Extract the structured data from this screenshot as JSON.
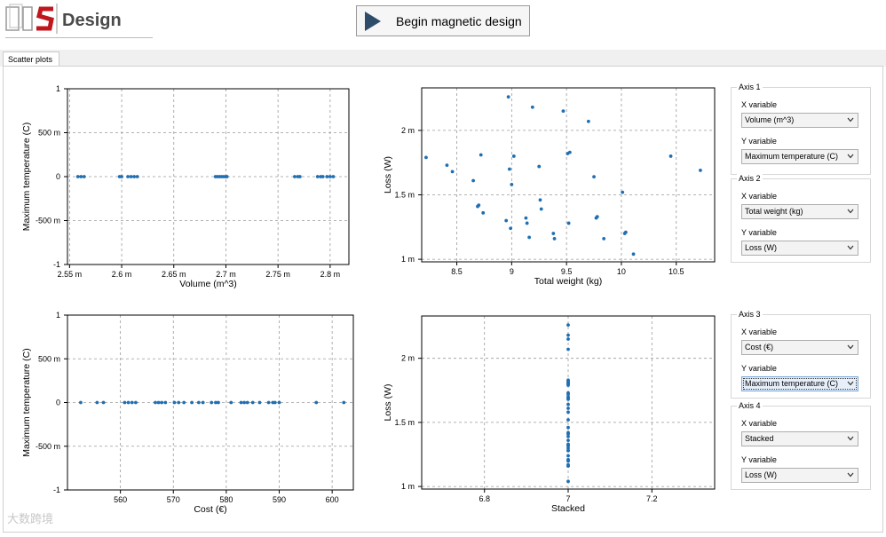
{
  "app": {
    "logo_text": "Design",
    "begin_button_label": "Begin magnetic design",
    "tab_label": "Scatter plots",
    "watermark": "大数跨境"
  },
  "colors": {
    "point": "#1f6fb2",
    "button_arrow": "#2e4d6b",
    "logo_red": "#c0161e"
  },
  "axes_panels": [
    {
      "title": "Axis 1",
      "x_label": "X variable",
      "x_value": "Volume (m^3)",
      "y_label": "Y variable",
      "y_value": "Maximum temperature (C)"
    },
    {
      "title": "Axis 2",
      "x_label": "X variable",
      "x_value": "Total weight (kg)",
      "y_label": "Y variable",
      "y_value": "Loss (W)"
    },
    {
      "title": "Axis 3",
      "x_label": "X variable",
      "x_value": "Cost (€)",
      "y_label": "Y variable",
      "y_value": "Maximum temperature (C)"
    },
    {
      "title": "Axis 4",
      "x_label": "X variable",
      "x_value": "Stacked",
      "y_label": "Y variable",
      "y_value": "Loss (W)"
    }
  ],
  "chart_data": [
    {
      "type": "scatter",
      "title": "",
      "xlabel": "Volume (m^3)",
      "ylabel": "Maximum temperature (C)",
      "xlim": [
        2.548,
        2.818
      ],
      "ylim": [
        -1,
        1
      ],
      "xticks": [
        2.55,
        2.6,
        2.65,
        2.7,
        2.75,
        2.8
      ],
      "xtick_labels": [
        "2.55 m",
        "2.6 m",
        "2.65 m",
        "2.7 m",
        "2.75 m",
        "2.8 m"
      ],
      "yticks": [
        -1,
        -0.5,
        0,
        0.5,
        1
      ],
      "ytick_labels": [
        "-1",
        "-500 m",
        "0",
        "500 m",
        "1"
      ],
      "grid": true,
      "x": [
        2.558,
        2.561,
        2.564,
        2.598,
        2.6,
        2.606,
        2.609,
        2.612,
        2.615,
        2.69,
        2.692,
        2.694,
        2.696,
        2.698,
        2.7,
        2.701,
        2.766,
        2.769,
        2.771,
        2.788,
        2.791,
        2.793,
        2.797,
        2.8,
        2.803
      ],
      "y": [
        0,
        0,
        0,
        0,
        0,
        0,
        0,
        0,
        0,
        0,
        0,
        0,
        0,
        0,
        0,
        0,
        0,
        0,
        0,
        0,
        0,
        0,
        0,
        0,
        0
      ]
    },
    {
      "type": "scatter",
      "title": "",
      "xlabel": "Total weight (kg)",
      "ylabel": "Loss (W)",
      "xlim": [
        8.18,
        10.85
      ],
      "ylim": [
        0.00098,
        0.00233
      ],
      "xticks": [
        8.5,
        9,
        9.5,
        10,
        10.5
      ],
      "xtick_labels": [
        "8.5",
        "9",
        "9.5",
        "10",
        "10.5"
      ],
      "yticks": [
        0.001,
        0.0015,
        0.002
      ],
      "ytick_labels": [
        "1 m",
        "1.5 m",
        "2 m"
      ],
      "grid": true,
      "x": [
        8.22,
        8.41,
        8.46,
        8.65,
        8.69,
        8.7,
        8.72,
        8.74,
        8.95,
        8.97,
        8.98,
        8.99,
        9.0,
        9.02,
        9.13,
        9.14,
        9.16,
        9.19,
        9.25,
        9.26,
        9.27,
        9.38,
        9.39,
        9.47,
        9.51,
        9.52,
        9.53,
        9.7,
        9.75,
        9.77,
        9.78,
        9.84,
        10.01,
        10.03,
        10.04,
        10.11,
        10.45,
        10.72
      ],
      "y": [
        0.00179,
        0.00173,
        0.00168,
        0.00161,
        0.00141,
        0.00142,
        0.00181,
        0.00136,
        0.0013,
        0.00226,
        0.0017,
        0.00124,
        0.00158,
        0.0018,
        0.00132,
        0.00128,
        0.00117,
        0.00218,
        0.00172,
        0.00146,
        0.00139,
        0.0012,
        0.00116,
        0.00215,
        0.00182,
        0.00128,
        0.00183,
        0.00207,
        0.00164,
        0.00132,
        0.00133,
        0.00116,
        0.00152,
        0.0012,
        0.00121,
        0.00104,
        0.0018,
        0.00169
      ]
    },
    {
      "type": "scatter",
      "title": "",
      "xlabel": "Cost (€)",
      "ylabel": "Maximum temperature (C)",
      "xlim": [
        550,
        604
      ],
      "ylim": [
        -1,
        1
      ],
      "xticks": [
        560,
        570,
        580,
        590,
        600
      ],
      "xtick_labels": [
        "560",
        "570",
        "580",
        "590",
        "600"
      ],
      "yticks": [
        -1,
        -0.5,
        0,
        0.5,
        1
      ],
      "ytick_labels": [
        "-1",
        "-500 m",
        "0",
        "500 m",
        "1"
      ],
      "grid": true,
      "x": [
        552.5,
        555.6,
        556.8,
        560.8,
        561.5,
        562.2,
        562.9,
        566.6,
        567.2,
        567.8,
        568.5,
        570.2,
        571.0,
        572.0,
        573.5,
        574.8,
        575.6,
        577.2,
        578.0,
        578.5,
        580.9,
        582.8,
        583.4,
        584.0,
        585.0,
        586.3,
        588.0,
        588.8,
        589.2,
        590.0,
        597.0,
        602.2
      ],
      "y": [
        0,
        0,
        0,
        0,
        0,
        0,
        0,
        0,
        0,
        0,
        0,
        0,
        0,
        0,
        0,
        0,
        0,
        0,
        0,
        0,
        0,
        0,
        0,
        0,
        0,
        0,
        0,
        0,
        0,
        0,
        0,
        0
      ]
    },
    {
      "type": "scatter",
      "title": "",
      "xlabel": "Stacked",
      "ylabel": "Loss (W)",
      "xlim": [
        6.65,
        7.35
      ],
      "ylim": [
        0.00098,
        0.00233
      ],
      "xticks": [
        6.8,
        7,
        7.2
      ],
      "xtick_labels": [
        "6.8",
        "7",
        "7.2"
      ],
      "yticks": [
        0.001,
        0.0015,
        0.002
      ],
      "ytick_labels": [
        "1 m",
        "1.5 m",
        "2 m"
      ],
      "grid": true,
      "x": [
        7,
        7,
        7,
        7,
        7,
        7,
        7,
        7,
        7,
        7,
        7,
        7,
        7,
        7,
        7,
        7,
        7,
        7,
        7,
        7,
        7,
        7,
        7,
        7,
        7,
        7,
        7,
        7,
        7,
        7,
        7,
        7,
        7,
        7,
        7,
        7,
        7,
        7
      ],
      "y": [
        0.00179,
        0.00173,
        0.00168,
        0.00161,
        0.00141,
        0.00142,
        0.00181,
        0.00136,
        0.0013,
        0.00226,
        0.0017,
        0.00124,
        0.00158,
        0.0018,
        0.00132,
        0.00128,
        0.00117,
        0.00218,
        0.00172,
        0.00146,
        0.00139,
        0.0012,
        0.00116,
        0.00215,
        0.00182,
        0.00128,
        0.00183,
        0.00207,
        0.00164,
        0.00132,
        0.00133,
        0.00116,
        0.00152,
        0.0012,
        0.00121,
        0.00104,
        0.0018,
        0.00169
      ]
    }
  ]
}
